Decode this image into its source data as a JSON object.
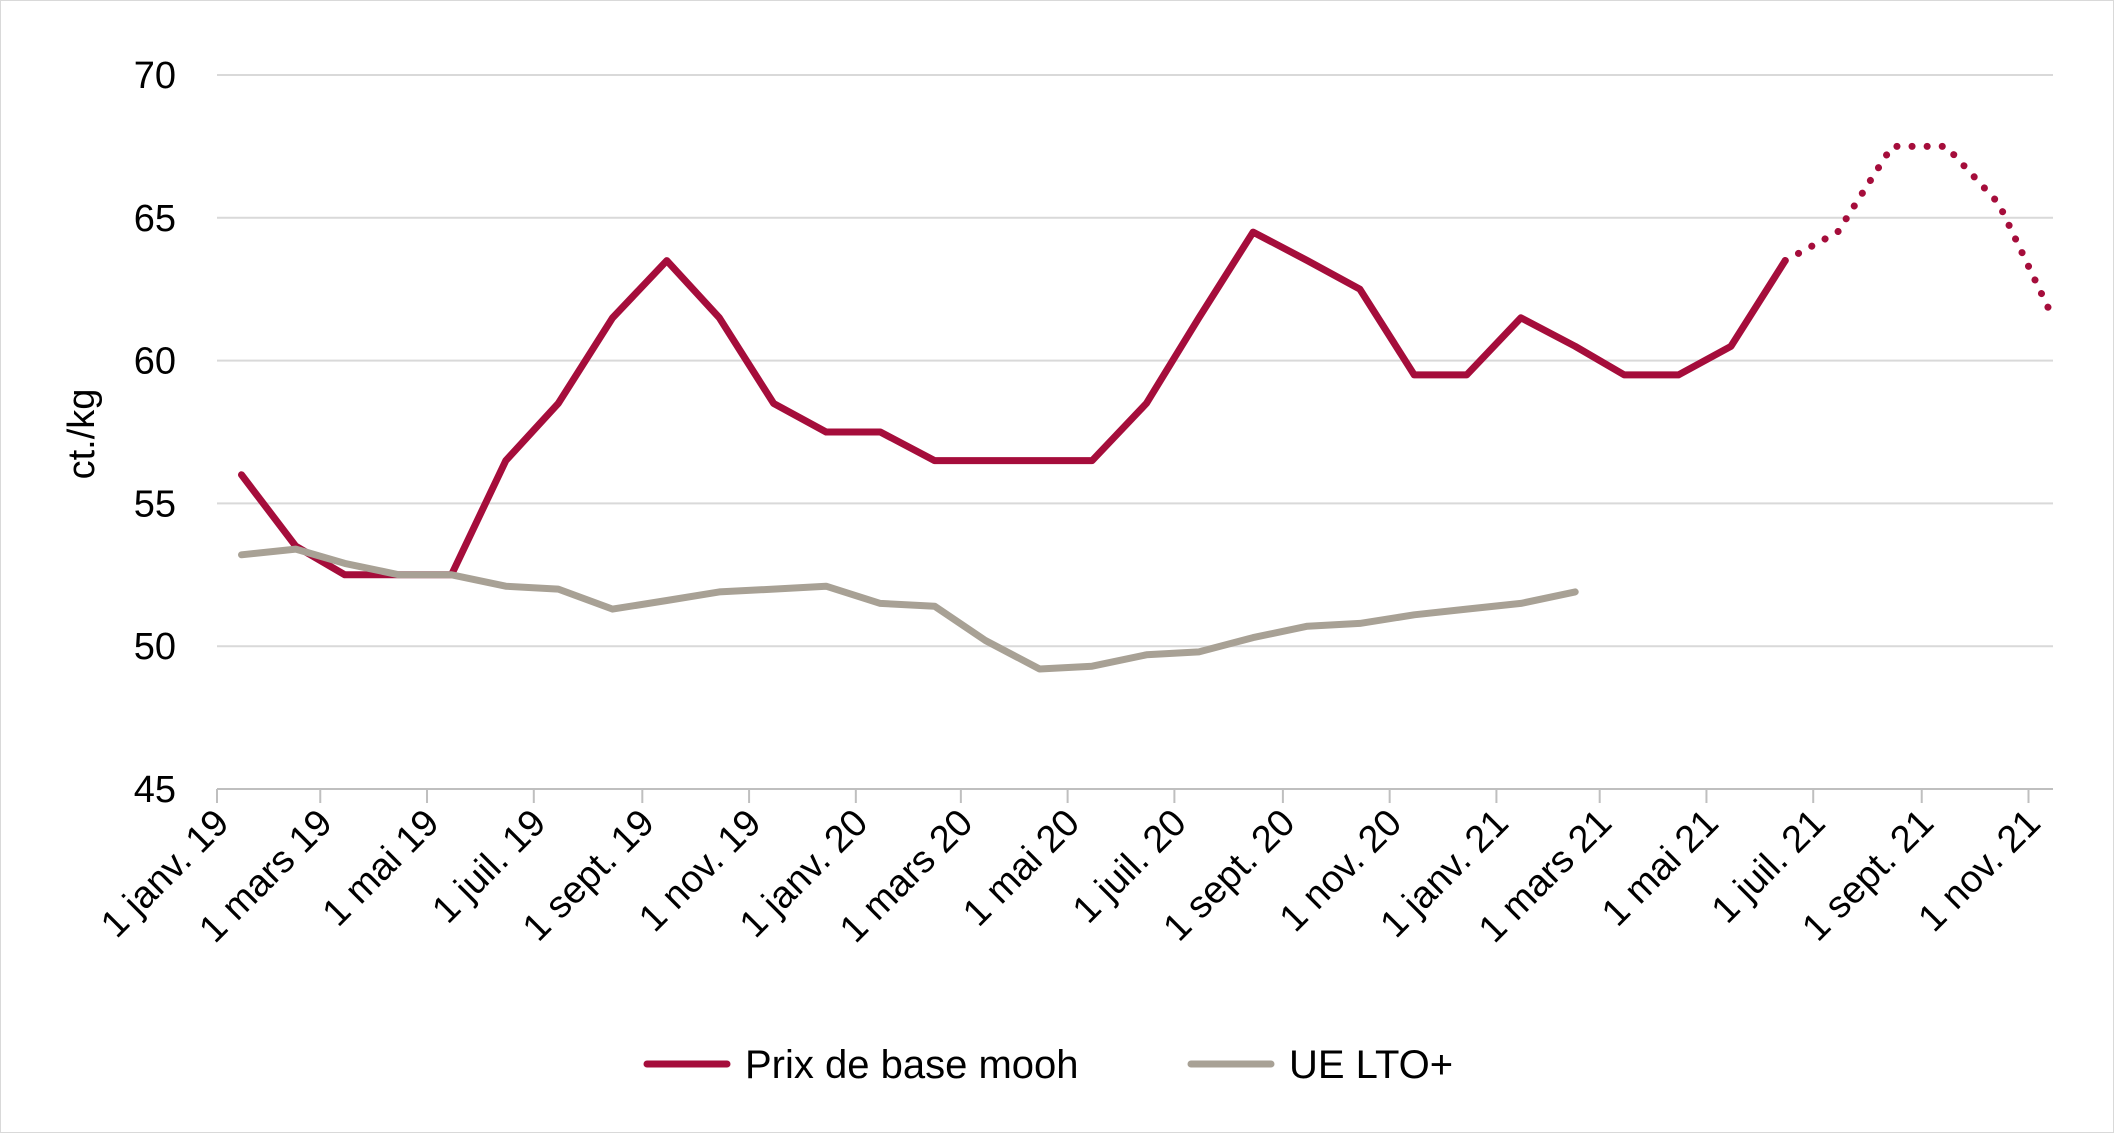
{
  "chart_data": {
    "type": "line",
    "title": "",
    "ylabel": "ct./kg",
    "xlabel": "",
    "ylim": [
      45,
      70
    ],
    "yticks": [
      45,
      50,
      55,
      60,
      65,
      70
    ],
    "x_range": [
      "2019-01-01",
      "2021-11-15"
    ],
    "xticks": [
      {
        "date": "2019-01-01",
        "label": "1 janv. 19"
      },
      {
        "date": "2019-03-01",
        "label": "1 mars 19"
      },
      {
        "date": "2019-05-01",
        "label": "1 mai 19"
      },
      {
        "date": "2019-07-01",
        "label": "1 juil. 19"
      },
      {
        "date": "2019-09-01",
        "label": "1 sept. 19"
      },
      {
        "date": "2019-11-01",
        "label": "1 nov. 19"
      },
      {
        "date": "2020-01-01",
        "label": "1 janv. 20"
      },
      {
        "date": "2020-03-01",
        "label": "1 mars 20"
      },
      {
        "date": "2020-05-01",
        "label": "1 mai 20"
      },
      {
        "date": "2020-07-01",
        "label": "1 juil. 20"
      },
      {
        "date": "2020-09-01",
        "label": "1 sept. 20"
      },
      {
        "date": "2020-11-01",
        "label": "1 nov. 20"
      },
      {
        "date": "2021-01-01",
        "label": "1 janv. 21"
      },
      {
        "date": "2021-03-01",
        "label": "1 mars 21"
      },
      {
        "date": "2021-05-01",
        "label": "1 mai 21"
      },
      {
        "date": "2021-07-01",
        "label": "1 juil. 21"
      },
      {
        "date": "2021-09-01",
        "label": "1 sept. 21"
      },
      {
        "date": "2021-11-01",
        "label": "1 nov. 21"
      }
    ],
    "grid": true,
    "legend_position": "bottom",
    "series": [
      {
        "name": "Prix de base mooh",
        "color": "#a50d3b",
        "style": "solid",
        "points": [
          [
            "2019-01-15",
            56.0
          ],
          [
            "2019-02-15",
            53.5
          ],
          [
            "2019-03-15",
            52.5
          ],
          [
            "2019-04-15",
            52.5
          ],
          [
            "2019-05-15",
            52.5
          ],
          [
            "2019-06-15",
            56.5
          ],
          [
            "2019-07-15",
            58.5
          ],
          [
            "2019-08-15",
            61.5
          ],
          [
            "2019-09-15",
            63.5
          ],
          [
            "2019-10-15",
            61.5
          ],
          [
            "2019-11-15",
            58.5
          ],
          [
            "2019-12-15",
            57.5
          ],
          [
            "2020-01-15",
            57.5
          ],
          [
            "2020-02-15",
            56.5
          ],
          [
            "2020-03-15",
            56.5
          ],
          [
            "2020-04-15",
            56.5
          ],
          [
            "2020-05-15",
            56.5
          ],
          [
            "2020-06-15",
            58.5
          ],
          [
            "2020-07-15",
            61.5
          ],
          [
            "2020-08-15",
            64.5
          ],
          [
            "2020-09-15",
            63.5
          ],
          [
            "2020-10-15",
            62.5
          ],
          [
            "2020-11-15",
            59.5
          ],
          [
            "2020-12-15",
            59.5
          ],
          [
            "2021-01-15",
            61.5
          ],
          [
            "2021-02-15",
            60.5
          ],
          [
            "2021-03-15",
            59.5
          ],
          [
            "2021-04-15",
            59.5
          ],
          [
            "2021-05-15",
            60.5
          ],
          [
            "2021-06-15",
            63.5
          ]
        ]
      },
      {
        "name": "",
        "color": "#a50d3b",
        "style": "dotted",
        "points": [
          [
            "2021-06-15",
            63.5
          ],
          [
            "2021-07-15",
            64.5
          ],
          [
            "2021-08-15",
            67.5
          ],
          [
            "2021-09-15",
            67.5
          ],
          [
            "2021-10-15",
            65.5
          ],
          [
            "2021-11-15",
            61.5
          ]
        ]
      },
      {
        "name": "UE LTO+",
        "color": "#a8a195",
        "style": "solid",
        "points": [
          [
            "2019-01-15",
            53.2
          ],
          [
            "2019-02-15",
            53.4
          ],
          [
            "2019-03-15",
            52.9
          ],
          [
            "2019-04-15",
            52.5
          ],
          [
            "2019-05-15",
            52.5
          ],
          [
            "2019-06-15",
            52.1
          ],
          [
            "2019-07-15",
            52.0
          ],
          [
            "2019-08-15",
            51.3
          ],
          [
            "2019-09-15",
            51.6
          ],
          [
            "2019-10-15",
            51.9
          ],
          [
            "2019-11-15",
            52.0
          ],
          [
            "2019-12-15",
            52.1
          ],
          [
            "2020-01-15",
            51.5
          ],
          [
            "2020-02-15",
            51.4
          ],
          [
            "2020-03-15",
            50.2
          ],
          [
            "2020-04-15",
            49.2
          ],
          [
            "2020-05-15",
            49.3
          ],
          [
            "2020-06-15",
            49.7
          ],
          [
            "2020-07-15",
            49.8
          ],
          [
            "2020-08-15",
            50.3
          ],
          [
            "2020-09-15",
            50.7
          ],
          [
            "2020-10-15",
            50.8
          ],
          [
            "2020-11-15",
            51.1
          ],
          [
            "2020-12-15",
            51.3
          ],
          [
            "2021-01-15",
            51.5
          ],
          [
            "2021-02-15",
            51.9
          ]
        ]
      }
    ]
  }
}
